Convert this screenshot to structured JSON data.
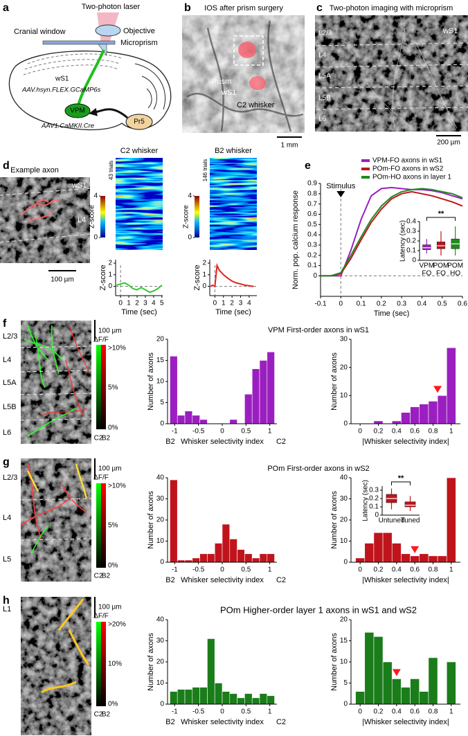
{
  "figure": {
    "panel_letters": [
      "a",
      "b",
      "c",
      "d",
      "e",
      "f",
      "g",
      "h"
    ],
    "diagram": {
      "laser": "Two-photon laser",
      "objective": "Objective",
      "window": "Cranial window",
      "prism": "Microprism",
      "area": "wS1",
      "virus1": "AAV.hsyn.FLEX.GCaMP6s",
      "vpm": "VPM",
      "virus2": "AAV1.CaMKII.Cre",
      "pr5": "Pr5"
    },
    "ios": {
      "title": "IOS after prism surgery",
      "prism": "Prism",
      "area": "wS1",
      "whisker": "C2 whisker",
      "scale": "1 mm"
    },
    "twophoton": {
      "title": "Two-photon imaging with microprism",
      "area": "wS1",
      "layers": [
        "L2/3",
        "L4",
        "L5A",
        "L5B",
        "L6"
      ],
      "scale": "200 µm"
    },
    "axon": {
      "title": "Example axon",
      "area": "wS1",
      "layer": "L4",
      "scale": "100 µm"
    },
    "rows": [
      {
        "layers": [
          "L2/3",
          "L4",
          "L5A",
          "L5B",
          "L6"
        ],
        "scale": "100 µm",
        "colorbar": {
          "title": "ΔF/F",
          "ticks": [
            ">10%",
            "5%",
            "0%"
          ],
          "left": "C2",
          "right": "B2"
        }
      },
      {
        "layers": [
          "L2/3",
          "L4",
          "L5"
        ],
        "scale": "100 µm",
        "colorbar": {
          "title": "ΔF/F",
          "ticks": [
            ">10%",
            "5%",
            "0%"
          ],
          "left": "C2",
          "right": "B2"
        }
      },
      {
        "layers": [
          "L1"
        ],
        "scale": "100 µm",
        "colorbar": {
          "title": "ΔF/F",
          "ticks": [
            ">20%",
            "10%",
            "0%"
          ],
          "left": "C2",
          "right": "B2"
        }
      }
    ]
  },
  "chart_data": [
    {
      "type": "line",
      "title": "C2 whisker",
      "annotation": "43 trials",
      "zlabel": "Z-score",
      "zticks": [
        0,
        4
      ],
      "ylabel": "Z-score",
      "xlabel": "Time (sec)",
      "color": "#2ecc2e",
      "x": [
        -0.5,
        0,
        0.5,
        1,
        1.5,
        2,
        2.5,
        3,
        3.5,
        4,
        4.5,
        5
      ],
      "values": [
        0.1,
        0.2,
        0.3,
        0.1,
        -0.2,
        -0.3,
        -0.1,
        -0.3,
        -0.5,
        -0.4,
        -0.2,
        0.1
      ],
      "xlim": [
        -0.6,
        5.1
      ],
      "xticks": [
        0,
        1,
        2,
        3,
        4,
        5
      ],
      "ylim": [
        -0.8,
        2.3
      ],
      "yticks": [
        0,
        1,
        2
      ],
      "marker_x": 0,
      "baseline": 0
    },
    {
      "type": "line",
      "title": "B2 whisker",
      "annotation": "146 trials",
      "zlabel": "Z-score",
      "zticks": [
        0,
        4
      ],
      "ylabel": "Z-score",
      "xlabel": "Time (sec)",
      "color": "#e8201c",
      "x": [
        -0.5,
        -0.25,
        0,
        0.25,
        0.5,
        1,
        1.5,
        2,
        2.5,
        3,
        3.5,
        4,
        4.5
      ],
      "values": [
        0,
        0.1,
        0,
        1.8,
        1.4,
        1,
        0.7,
        0.45,
        0.3,
        0.2,
        0.1,
        0.05,
        0
      ],
      "xlim": [
        -0.6,
        4.9
      ],
      "xticks": [
        0,
        1,
        2,
        3,
        4
      ],
      "ylim": [
        -0.8,
        2.3
      ],
      "yticks": [
        0,
        1,
        2
      ],
      "marker_x": 0,
      "baseline": 0
    },
    {
      "type": "line",
      "ylabel": "Norm. pop. calcium response",
      "xlabel": "Time (sec)",
      "annotation": "Stimulus",
      "legend": "top",
      "x": [
        -0.1,
        -0.05,
        0,
        0.05,
        0.1,
        0.15,
        0.2,
        0.25,
        0.3,
        0.35,
        0.4,
        0.45,
        0.5,
        0.55,
        0.6
      ],
      "series": [
        {
          "name": "VPM-FO axons in wS1",
          "color": "#9b1fc0",
          "values": [
            0,
            0,
            0,
            0.25,
            0.55,
            0.78,
            0.85,
            0.86,
            0.85,
            0.84,
            0.84,
            0.83,
            0.81,
            0.78,
            0.75
          ]
        },
        {
          "name": "POm-FO axons in wS2",
          "color": "#c0141c",
          "values": [
            0,
            0,
            0.02,
            0.17,
            0.35,
            0.52,
            0.65,
            0.75,
            0.8,
            0.82,
            0.8,
            0.78,
            0.75,
            0.72,
            0.68
          ]
        },
        {
          "name": "POm-HO axons in layer 1",
          "color": "#1e8a1e",
          "values": [
            0,
            0,
            0.03,
            0.2,
            0.38,
            0.55,
            0.68,
            0.77,
            0.82,
            0.84,
            0.85,
            0.84,
            0.82,
            0.8,
            0.76
          ]
        }
      ],
      "xlim": [
        -0.1,
        0.6
      ],
      "xticks": [
        -0.1,
        0,
        0.1,
        0.2,
        0.3,
        0.4,
        0.5,
        0.6
      ],
      "ylim": [
        -0.2,
        0.9
      ],
      "yticks": [
        0,
        0.1,
        0.2,
        0.3,
        0.4,
        0.5,
        0.6,
        0.7,
        0.8,
        0.9
      ],
      "marker_x": 0,
      "baseline": 0
    },
    {
      "type": "box",
      "ylabel": "Latency (sec)",
      "annotation": "**",
      "categories": [
        [
          "VPM",
          "FO"
        ],
        [
          "POM",
          "FO"
        ],
        [
          "POM",
          "HO"
        ]
      ],
      "colors": [
        "#9b1fc0",
        "#c0141c",
        "#1e8a1e"
      ],
      "boxes": [
        {
          "low": 0.07,
          "q1": 0.11,
          "median": 0.13,
          "q3": 0.16,
          "high": 0.22
        },
        {
          "low": 0.05,
          "q1": 0.12,
          "median": 0.15,
          "q3": 0.19,
          "high": 0.3
        },
        {
          "low": 0.05,
          "q1": 0.12,
          "median": 0.17,
          "q3": 0.22,
          "high": 0.35
        }
      ],
      "ylim": [
        0,
        0.4
      ],
      "yticks": [
        0,
        0.1,
        0.2,
        0.3,
        0.4
      ]
    },
    {
      "type": "histogram",
      "title": "VPM First-order axons in wS1",
      "ylabel": "Number of axons",
      "xlabel": "Whisker selectivity index",
      "left_label": "B2",
      "right_label": "C2",
      "color": "#9b1fc0",
      "bins": [
        -1.1,
        -0.943,
        -0.786,
        -0.629,
        -0.471,
        -0.314,
        -0.157,
        0,
        0.157,
        0.314,
        0.471,
        0.629,
        0.786,
        0.943,
        1.1
      ],
      "values": [
        16,
        2,
        3,
        2,
        1,
        0,
        0,
        0,
        1,
        0,
        7,
        13,
        15,
        17
      ],
      "xlim": [
        -1.15,
        1.15
      ],
      "xticks": [
        -1,
        -0.5,
        0,
        0.5,
        1
      ],
      "ylim": [
        0,
        20
      ],
      "yticks": [
        0,
        5,
        10,
        15,
        20
      ]
    },
    {
      "type": "histogram",
      "ylabel": "Number of axons",
      "xlabel": "|Whisker selectivity index|",
      "color": "#9b1fc0",
      "median": 0.85,
      "bins": [
        -0.05,
        0.05,
        0.15,
        0.25,
        0.35,
        0.45,
        0.55,
        0.65,
        0.75,
        0.85,
        0.95,
        1.05
      ],
      "values": [
        0,
        0,
        1,
        0,
        1,
        4,
        6,
        7,
        8,
        10,
        27
      ],
      "xlim": [
        -0.1,
        1.1
      ],
      "xticks": [
        0,
        0.2,
        0.4,
        0.6,
        0.8,
        1
      ],
      "ylim": [
        0,
        30
      ],
      "yticks": [
        0,
        10,
        20,
        30
      ]
    },
    {
      "type": "histogram",
      "title": "POm First-order axons in wS2",
      "ylabel": "Number of axons",
      "xlabel": "Whisker selectivity index",
      "left_label": "B2",
      "right_label": "C2",
      "color": "#c0141c",
      "bins": [
        -1.1,
        -0.943,
        -0.786,
        -0.629,
        -0.471,
        -0.314,
        -0.157,
        0,
        0.157,
        0.314,
        0.471,
        0.629,
        0.786,
        0.943,
        1.1
      ],
      "values": [
        39,
        1,
        1,
        2,
        4,
        4,
        9,
        18,
        11,
        6,
        4,
        2,
        4,
        4
      ],
      "xlim": [
        -1.15,
        1.15
      ],
      "xticks": [
        -1,
        -0.5,
        0,
        0.5,
        1
      ],
      "ylim": [
        0,
        40
      ],
      "yticks": [
        0,
        10,
        20,
        30,
        40
      ]
    },
    {
      "type": "histogram",
      "ylabel": "Number of axons",
      "xlabel": "|Whisker selectivity index|",
      "color": "#c0141c",
      "median": 0.6,
      "bins": [
        -0.05,
        0.05,
        0.15,
        0.25,
        0.35,
        0.45,
        0.55,
        0.65,
        0.75,
        0.85,
        0.95,
        1.05
      ],
      "values": [
        2,
        9,
        14,
        14,
        9,
        4,
        3,
        4,
        3,
        3,
        40
      ],
      "xlim": [
        -0.1,
        1.1
      ],
      "xticks": [
        0,
        0.2,
        0.4,
        0.6,
        0.8,
        1
      ],
      "ylim": [
        0,
        40
      ],
      "yticks": [
        0,
        10,
        20,
        30,
        40
      ]
    },
    {
      "type": "box",
      "ylabel": "Latency (sec)",
      "annotation": "**",
      "categories": [
        "Untuned",
        "Tuned"
      ],
      "colors": [
        "#c0141c",
        "#c0141c"
      ],
      "boxes": [
        {
          "low": 0.07,
          "q1": 0.15,
          "median": 0.2,
          "q3": 0.25,
          "high": 0.32
        },
        {
          "low": 0.05,
          "q1": 0.1,
          "median": 0.12,
          "q3": 0.16,
          "high": 0.23
        }
      ],
      "ylim": [
        0,
        0.35
      ],
      "yticks": [
        0,
        0.1,
        0.2,
        0.3
      ]
    },
    {
      "type": "histogram",
      "title": "POm Higher-order layer 1 axons in wS1 and wS2",
      "ylabel": "Number of axons",
      "xlabel": "Whisker selectivity index",
      "left_label": "B2",
      "right_label": "C2",
      "color": "#1a7d1a",
      "bins": [
        -1.1,
        -0.943,
        -0.786,
        -0.629,
        -0.471,
        -0.314,
        -0.157,
        0,
        0.157,
        0.314,
        0.471,
        0.629,
        0.786,
        0.943,
        1.1
      ],
      "values": [
        6,
        7,
        7,
        8,
        8,
        31,
        10,
        6,
        5,
        3,
        5,
        3,
        5,
        4
      ],
      "xlim": [
        -1.15,
        1.15
      ],
      "xticks": [
        -1,
        -0.5,
        0,
        0.5,
        1
      ],
      "ylim": [
        0,
        40
      ],
      "yticks": [
        0,
        10,
        20,
        30,
        40
      ]
    },
    {
      "type": "histogram",
      "ylabel": "Number of axons",
      "xlabel": "|Whisker selectivity index|",
      "color": "#1a7d1a",
      "median": 0.4,
      "bins": [
        -0.05,
        0.05,
        0.15,
        0.25,
        0.35,
        0.45,
        0.55,
        0.65,
        0.75,
        0.85,
        0.95,
        1.05
      ],
      "values": [
        3,
        17,
        16,
        10,
        6,
        4,
        6,
        3,
        11,
        0,
        10
      ],
      "xlim": [
        -0.1,
        1.1
      ],
      "xticks": [
        0,
        0.2,
        0.4,
        0.6,
        0.8,
        1
      ],
      "ylim": [
        0,
        20
      ],
      "yticks": [
        0,
        5,
        10,
        15,
        20
      ]
    }
  ]
}
